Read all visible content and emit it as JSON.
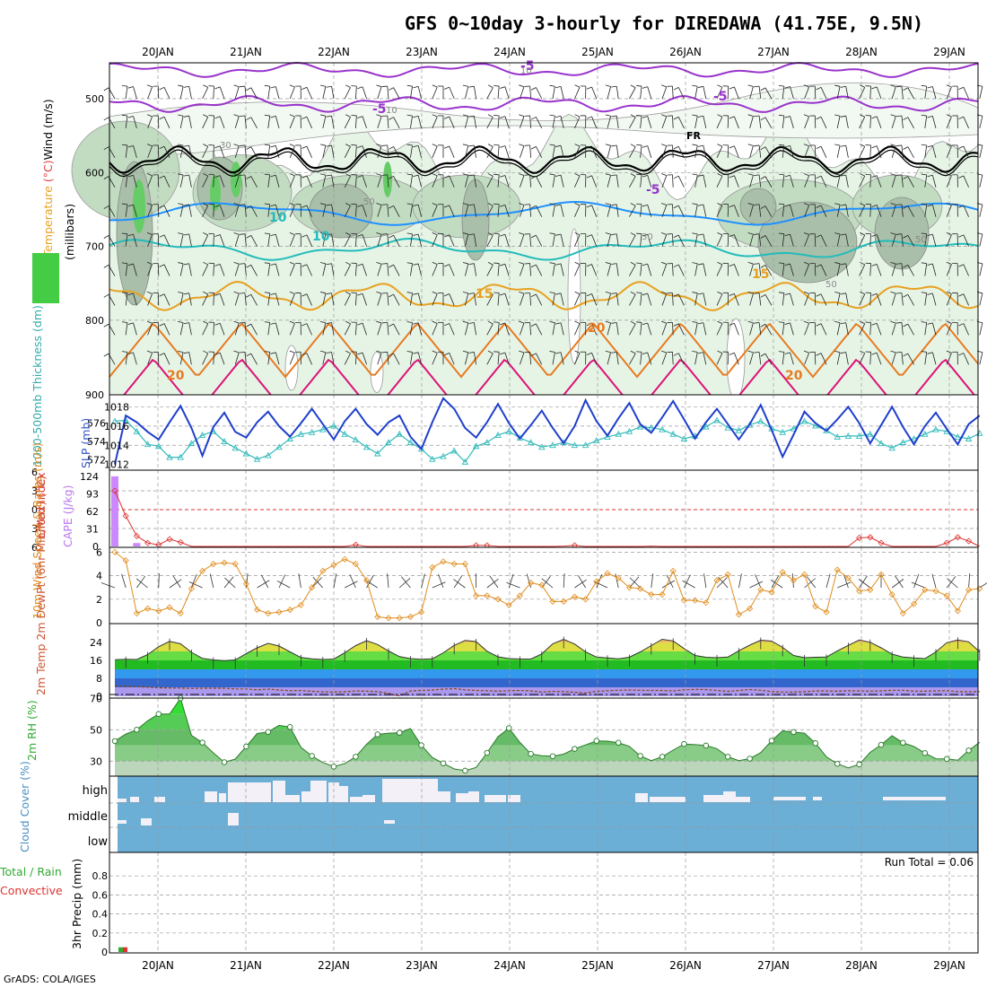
{
  "title": "GFS 0~10day 3-hourly for DIREDAWA (41.75E, 9.5N)",
  "footer": "GrADS: COLA/IGES",
  "dates": [
    "20JAN",
    "21JAN",
    "22JAN",
    "23JAN",
    "24JAN",
    "25JAN",
    "26JAN",
    "27JAN",
    "28JAN",
    "29JAN"
  ],
  "colors": {
    "rh_light": "#e6f4e6",
    "rh_mid": "#c2dcc2",
    "rh_dark": "#a9bfa9",
    "rh_high": "#66cc66",
    "t_purple": "#9933cc",
    "t_black": "#000000",
    "t_blue": "#1e90ff",
    "t_cyan": "#22bbbb",
    "t_orange": "#e8a020",
    "t_dkorange": "#e87a20",
    "t_magenta": "#dd1177",
    "slp": "#1f3fcc",
    "thk": "#33bbbb",
    "li": "#dd3333",
    "cape": "#cc88ff",
    "wind10": "#e08b1a",
    "cloud": "#6baed6",
    "rh2m": "#55bb55",
    "precip_total": "#33aa33",
    "precip_conv": "#dd3333"
  },
  "panels": {
    "upper": {
      "ylabel_words": [
        "RH (%)",
        "Temperature",
        " (°C)",
        "Wind",
        " (m/s)"
      ],
      "yunit": "(millibars)",
      "yticks": [
        "500",
        "600",
        "700",
        "800",
        "900"
      ],
      "contour_labels": [
        {
          "text": "-5",
          "level": "-5"
        },
        {
          "text": "-5",
          "level": "-5"
        },
        {
          "text": "FR",
          "level": "FR"
        },
        {
          "text": "-5",
          "level": "-5"
        },
        {
          "text": "-5",
          "level": "-5"
        },
        {
          "text": "10",
          "level": "10"
        },
        {
          "text": "10",
          "level": "10"
        },
        {
          "text": "15",
          "level": "15"
        },
        {
          "text": "15",
          "level": "15"
        },
        {
          "text": "20",
          "level": "20"
        },
        {
          "text": "20",
          "level": "20"
        },
        {
          "text": "20",
          "level": "20"
        }
      ],
      "rh_labels": [
        "10",
        "10",
        "30",
        "50",
        "30",
        "50",
        "50"
      ]
    },
    "slp": {
      "label_left": "1000-500mb Thickness (dm)",
      "label_right": "SLP (mb)",
      "yticks_left": [
        "576",
        "574",
        "572"
      ],
      "yticks_right": [
        "1018",
        "1016",
        "1014",
        "1012"
      ],
      "slp_mb": [
        1012.0,
        1017.1,
        1016.4,
        1015.4,
        1014.6,
        1016.4,
        1018.1,
        1015.8,
        1012.9,
        1015.9,
        1017.4,
        1015.4,
        1014.8,
        1016.4,
        1017.5,
        1016.0,
        1014.9,
        1016.3,
        1017.8,
        1016.2,
        1014.6,
        1016.5,
        1017.8,
        1016.2,
        1015.1,
        1016.4,
        1017.1,
        1014.9,
        1013.6,
        1016.4,
        1018.9,
        1017.8,
        1015.8,
        1014.8,
        1016.4,
        1018.3,
        1016.3,
        1014.7,
        1016.1,
        1017.6,
        1015.8,
        1014.2,
        1016.0,
        1018.7,
        1016.5,
        1015.0,
        1016.8,
        1018.4,
        1016.2,
        1015.3,
        1016.9,
        1018.6,
        1016.7,
        1014.7,
        1016.4,
        1017.8,
        1016.2,
        1014.6,
        1016.2,
        1018.2,
        1015.6,
        1012.8,
        1015.1,
        1017.5,
        1016.3,
        1015.5,
        1016.7,
        1018.0,
        1016.3,
        1014.2,
        1016.1,
        1018.0,
        1015.9,
        1014.1,
        1016.0,
        1017.4,
        1015.7,
        1014.1,
        1016.2,
        1017.1
      ],
      "thk_dm": [
        576.2,
        576.3,
        575.1,
        573.7,
        573.5,
        572.3,
        572.3,
        573.8,
        574.7,
        575.1,
        574.0,
        573.3,
        572.7,
        572.1,
        572.5,
        573.4,
        574.3,
        574.8,
        575.0,
        575.3,
        575.7,
        574.8,
        574.2,
        573.4,
        572.7,
        573.9,
        574.8,
        573.9,
        573.2,
        572.1,
        572.4,
        573.0,
        571.8,
        573.5,
        573.9,
        574.7,
        575.1,
        574.4,
        573.9,
        573.4,
        573.6,
        573.9,
        573.6,
        573.6,
        574.1,
        574.5,
        574.8,
        575.1,
        575.6,
        575.5,
        575.3,
        574.8,
        574.3,
        574.6,
        575.6,
        576.3,
        575.5,
        575.2,
        575.8,
        576.2,
        575.4,
        575.0,
        575.4,
        576.2,
        575.7,
        575.2,
        574.5,
        574.6,
        574.6,
        574.8,
        573.8,
        573.3,
        573.9,
        574.3,
        574.8,
        575.3,
        575.1,
        574.5,
        574.3,
        574.9
      ]
    },
    "cape": {
      "label_left": "Lifted Index",
      "label_right": "CAPE (J/kg)",
      "yticks_left": [
        "6",
        "3",
        "0",
        "3",
        "6"
      ],
      "yticks_right": [
        "124",
        "93",
        "62",
        "31",
        "0"
      ],
      "cape_jkg": [
        124,
        0,
        6,
        0
      ],
      "li": [
        3.0,
        -1.0,
        -4.2,
        -5.3,
        -5.6,
        -4.7,
        -5.2,
        -5.9,
        -5.9,
        -5.9,
        -5.9,
        -7.4,
        -8.0,
        -8.1,
        -7.8,
        -7.0,
        -7.6,
        -8.1,
        -8.1,
        -8.0,
        -7.5,
        -6.6,
        -5.6,
        -6.5,
        -7.5,
        -8.2,
        -8.4,
        -7.6,
        -7.4,
        -8.0,
        -8.2,
        -8.1,
        -6.8,
        -5.7,
        -5.7,
        -6.0,
        -6.6,
        -7.9,
        -8.2,
        -7.5,
        -6.6,
        -5.8,
        -5.7,
        -6.3,
        -7.0,
        -7.3,
        -8.1,
        -8.6,
        -7.3,
        -5.8,
        -6.0,
        -6.7,
        -7.7,
        -8.2,
        -8.8,
        -8.0,
        -7.6,
        -8.2,
        -8.0,
        -7.4,
        -6.7,
        -7.3,
        -7.5,
        -7.6,
        -7.6,
        -7.4,
        -7.4,
        -6.7,
        -4.5,
        -4.4,
        -5.3,
        -6.2,
        -6.7,
        -7.5,
        -7.4,
        -6.9,
        -5.3,
        -4.4,
        -5.0,
        -6.0
      ]
    },
    "wind": {
      "label": "10m Wind Speed & Barbs (m/s)",
      "yticks": [
        "6",
        "4",
        "2",
        "0"
      ],
      "speed_ms": [
        6.0,
        5.3,
        0.8,
        1.2,
        1.0,
        1.3,
        0.8,
        2.9,
        4.4,
        5.0,
        5.1,
        5.0,
        3.3,
        1.1,
        0.8,
        0.9,
        1.1,
        1.5,
        3.0,
        4.4,
        4.9,
        5.4,
        5.0,
        3.6,
        0.5,
        0.4,
        0.4,
        0.5,
        0.9,
        4.7,
        5.2,
        5.0,
        5.0,
        2.3,
        2.3,
        2.0,
        1.5,
        2.3,
        3.4,
        3.2,
        1.8,
        1.8,
        2.2,
        2.0,
        3.5,
        4.2,
        3.8,
        3.0,
        2.9,
        2.4,
        2.4,
        4.4,
        1.9,
        1.9,
        1.7,
        3.6,
        4.1,
        0.7,
        1.2,
        2.8,
        2.6,
        4.3,
        3.6,
        4.1,
        1.4,
        0.9,
        4.5,
        3.8,
        2.7,
        2.8,
        4.1,
        2.4,
        0.8,
        1.6,
        2.8,
        2.7,
        2.3,
        1.0,
        2.8,
        2.9
      ]
    },
    "temp": {
      "label": "2m Temp 2m DewPt (6hr Min/Max) (°C)",
      "yticks": [
        "24",
        "16",
        "8",
        "0"
      ],
      "temp_c": [
        16.3,
        16.5,
        16.4,
        18.6,
        22.1,
        24.5,
        23.4,
        19.6,
        16.9,
        16.2,
        15.9,
        16.2,
        19.0,
        21.6,
        23.6,
        22.4,
        19.8,
        17.3,
        16.7,
        16.4,
        16.6,
        19.4,
        22.6,
        24.8,
        23.1,
        20.2,
        17.7,
        16.8,
        16.5,
        16.7,
        19.4,
        22.7,
        24.9,
        24.4,
        20.1,
        17.6,
        16.8,
        16.6,
        16.6,
        18.9,
        23.4,
        25.4,
        23.3,
        19.8,
        17.5,
        17.1,
        16.7,
        17.4,
        19.8,
        22.6,
        25.4,
        24.7,
        21.3,
        18.2,
        17.4,
        17.2,
        17.5,
        20.3,
        22.8,
        25.0,
        24.6,
        21.8,
        18.2,
        17.2,
        17.4,
        17.5,
        20.2,
        22.7,
        25.1,
        24.1,
        21.6,
        18.8,
        17.5,
        17.1,
        16.8,
        19.8,
        23.9,
        25.1,
        24.3,
        19.8
      ],
      "dewpt_c": [
        4.6,
        4.5,
        4.3,
        4.1,
        3.8,
        3.7,
        3.7,
        3.5,
        3.6,
        3.6,
        3.6,
        3.3,
        3.3,
        2.9,
        3.2,
        2.8,
        2.5,
        2.6,
        2.2,
        2.0,
        1.9,
        2.0,
        2.4,
        2.3,
        2.1,
        1.3,
        0.2,
        2.4,
        2.6,
        2.8,
        3.2,
        3.4,
        2.9,
        2.6,
        2.5,
        2.3,
        2.5,
        2.6,
        2.4,
        1.9,
        2.2,
        2.1,
        1.8,
        1.5,
        2.2,
        2.5,
        2.7,
        2.8,
        2.7,
        2.6,
        2.6,
        2.4,
        2.9,
        3.1,
        3.0,
        2.6,
        2.2,
        2.6,
        3.0,
        2.7,
        2.1,
        1.9,
        1.9,
        2.0,
        2.4,
        2.4,
        2.3,
        2.5,
        2.4,
        2.3,
        2.4,
        2.7,
        2.7,
        2.3,
        2.3,
        2.4,
        2.5,
        2.1,
        2.0,
        2.1
      ]
    },
    "rh2m": {
      "label": "2m RH (%)",
      "yticks": [
        "70",
        "50",
        "30"
      ],
      "rh_pct": [
        42.8,
        47.2,
        50.0,
        55.7,
        60.0,
        60.0,
        70.0,
        46.4,
        41.8,
        35.2,
        29.3,
        31.3,
        39.3,
        47.6,
        48.6,
        52.8,
        51.7,
        38.8,
        33.3,
        29.1,
        26.5,
        28.4,
        32.8,
        40.7,
        47.0,
        47.8,
        48.1,
        50.7,
        40.1,
        32.3,
        28.6,
        25.0,
        23.9,
        26.0,
        35.3,
        45.5,
        51.0,
        41.9,
        34.6,
        33.4,
        33.1,
        34.4,
        37.8,
        40.3,
        42.9,
        42.7,
        41.7,
        39.4,
        33.3,
        30.3,
        32.8,
        37.0,
        40.9,
        40.5,
        39.9,
        37.9,
        32.8,
        30.3,
        31.6,
        35.4,
        43.0,
        49.3,
        48.5,
        47.8,
        41.4,
        32.7,
        28.3,
        25.7,
        27.9,
        35.6,
        40.4,
        46.2,
        41.7,
        39.3,
        35.1,
        31.5,
        31.4,
        30.6,
        36.8,
        42.0
      ]
    },
    "cloud": {
      "label": "Cloud Cover (%)",
      "levels": [
        "high",
        "middle",
        "low"
      ]
    },
    "precip": {
      "label_total": "Total / Rain",
      "label_conv": "Convective",
      "label_axis": "3hr Precip (mm)",
      "yticks": [
        "0.8",
        "0.6",
        "0.4",
        "0.2",
        "0"
      ],
      "run_total": "Run Total = 0.06",
      "total_mm": [
        0.05,
        0.0,
        0.0
      ],
      "convective_mm": [
        0.05,
        0.0,
        0.0
      ]
    }
  },
  "chart_data": [
    {
      "type": "area",
      "title": "GFS 0~10day 3-hourly for DIREDAWA (41.75E, 9.5N)",
      "ylabel": "millibars",
      "categories": [
        "20JAN",
        "21JAN",
        "22JAN",
        "23JAN",
        "24JAN",
        "25JAN",
        "26JAN",
        "27JAN",
        "28JAN",
        "29JAN"
      ],
      "ylim": [
        900,
        450
      ],
      "series": [
        {
          "name": "RH (%)"
        },
        {
          "name": "Temperature (°C)"
        },
        {
          "name": "Wind (m/s)"
        }
      ]
    },
    {
      "type": "line",
      "ylabel": "SLP (mb)",
      "series": [
        {
          "name": "SLP (mb)"
        },
        {
          "name": "1000-500mb Thickness (dm)"
        }
      ]
    },
    {
      "type": "line",
      "ylabel": "CAPE (J/kg)",
      "series": [
        {
          "name": "Lifted Index"
        },
        {
          "name": "CAPE (J/kg)"
        }
      ]
    },
    {
      "type": "line",
      "ylabel": "10m Wind Speed & Barbs (m/s)",
      "ylim": [
        0,
        6
      ]
    },
    {
      "type": "area",
      "ylabel": "2m Temp 2m DewPt (6hr Min/Max) (°C)",
      "ylim": [
        0,
        26
      ]
    },
    {
      "type": "area",
      "ylabel": "2m RH (%)",
      "ylim": [
        20,
        72
      ]
    },
    {
      "type": "bar",
      "ylabel": "Cloud Cover (%)",
      "categories": [
        "high",
        "middle",
        "low"
      ]
    },
    {
      "type": "bar",
      "ylabel": "3hr Precip (mm)",
      "ylim": [
        0,
        1.0
      ]
    }
  ]
}
